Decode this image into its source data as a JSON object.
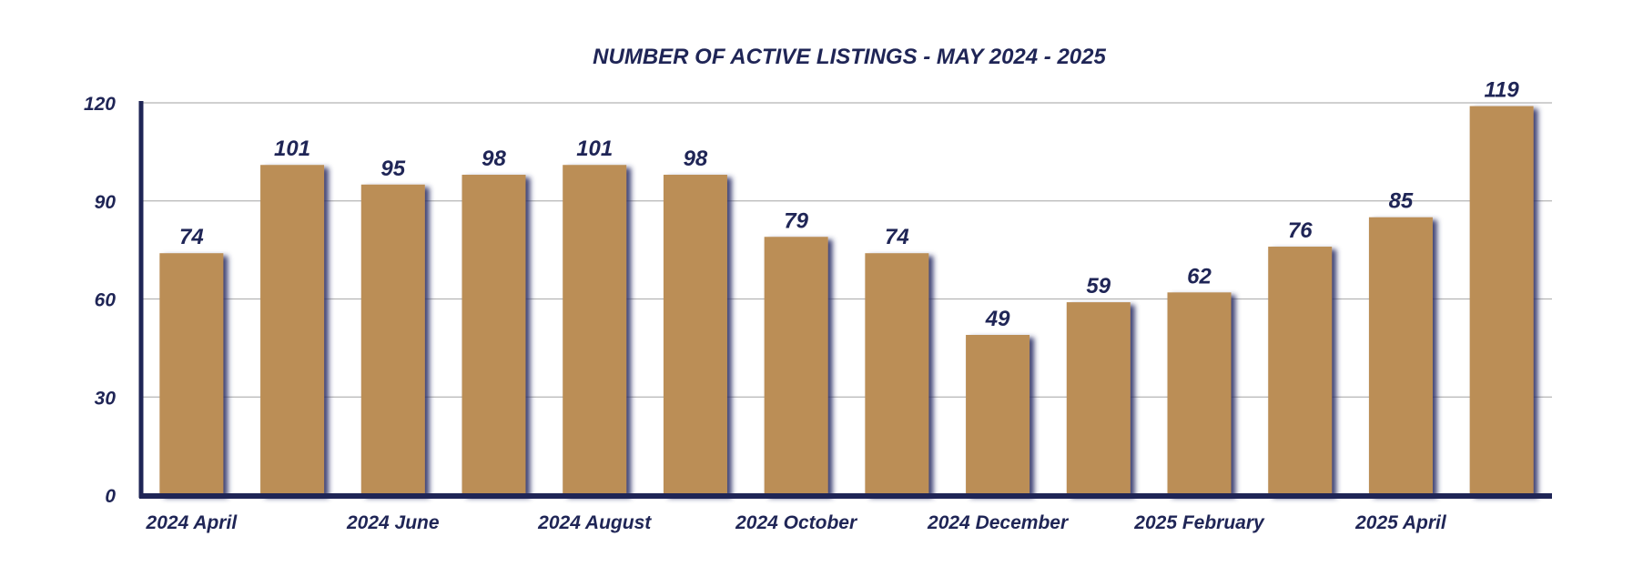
{
  "chart_data": {
    "type": "bar",
    "title": "NUMBER OF ACTIVE LISTINGS - MAY 2024 - 2025",
    "xlabel": "",
    "ylabel": "",
    "categories": [
      "2024 April",
      "",
      "2024 June",
      "",
      "2024 August",
      "",
      "2024 October",
      "",
      "2024 December",
      "",
      "2025 February",
      "",
      "2025 April",
      ""
    ],
    "values": [
      74,
      101,
      95,
      98,
      101,
      98,
      79,
      74,
      49,
      59,
      62,
      76,
      85,
      119
    ],
    "ylim": [
      0,
      120
    ],
    "yticks": [
      0,
      30,
      60,
      90,
      120
    ],
    "grid": true,
    "data_labels": true,
    "colors": {
      "bar": "#bb8e56",
      "bar_shadow": "#2b2f66",
      "text": "#1f2556",
      "axis": "#1f2556",
      "grid": "#b5b5b5"
    }
  }
}
